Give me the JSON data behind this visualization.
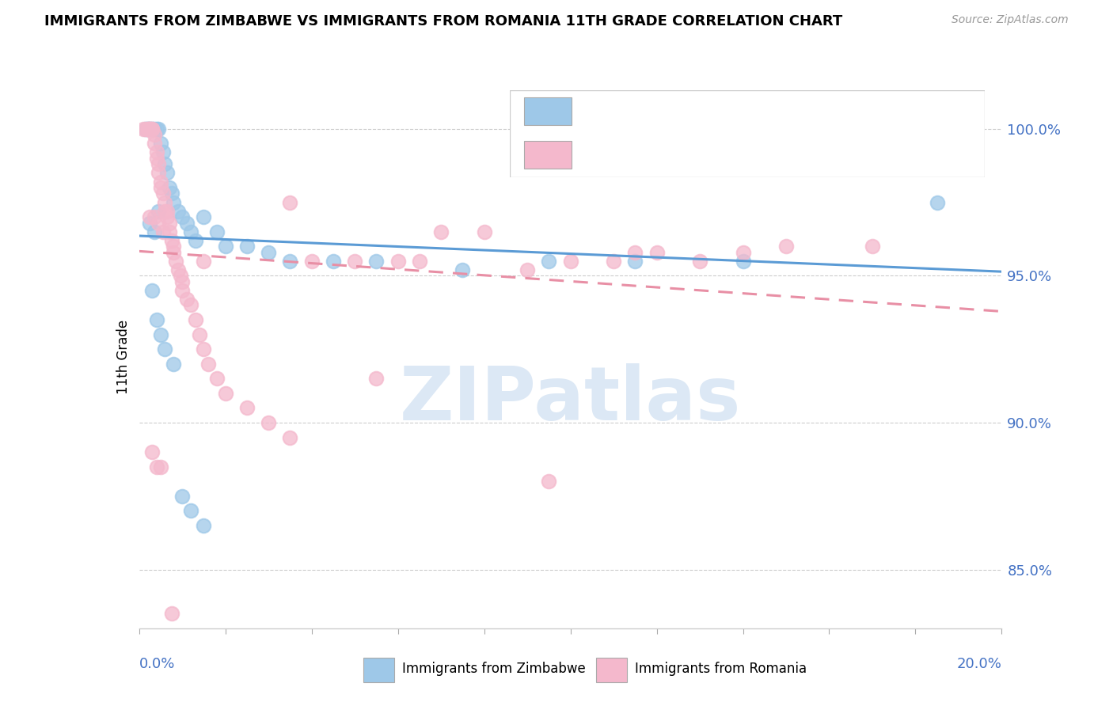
{
  "title": "IMMIGRANTS FROM ZIMBABWE VS IMMIGRANTS FROM ROMANIA 11TH GRADE CORRELATION CHART",
  "source": "Source: ZipAtlas.com",
  "ylabel": "11th Grade",
  "xlim": [
    0.0,
    20.0
  ],
  "ylim": [
    83.0,
    101.5
  ],
  "yticks": [
    85.0,
    90.0,
    95.0,
    100.0
  ],
  "ytick_labels": [
    "85.0%",
    "90.0%",
    "95.0%",
    "100.0%"
  ],
  "color_zimbabwe": "#9ec8e8",
  "color_romania": "#f4b8cc",
  "color_blue_text": "#4472c4",
  "watermark": "ZIPatlas",
  "watermark_color": "#dce8f5",
  "zimbabwe_x": [
    0.15,
    0.2,
    0.25,
    0.3,
    0.35,
    0.4,
    0.45,
    0.5,
    0.55,
    0.6,
    0.65,
    0.7,
    0.75,
    0.8,
    0.9,
    1.0,
    1.1,
    1.2,
    1.3,
    1.5,
    1.8,
    2.0,
    2.5,
    3.0,
    3.5,
    4.5,
    5.5,
    7.5,
    9.5,
    11.5,
    14.0,
    0.3,
    0.4,
    0.5,
    0.6,
    0.8,
    1.0,
    1.2,
    1.5,
    0.35,
    0.45,
    18.5,
    0.25
  ],
  "zimbabwe_y": [
    100.0,
    100.0,
    100.0,
    100.0,
    100.0,
    100.0,
    100.0,
    99.5,
    99.2,
    98.8,
    98.5,
    98.0,
    97.8,
    97.5,
    97.2,
    97.0,
    96.8,
    96.5,
    96.2,
    97.0,
    96.5,
    96.0,
    96.0,
    95.8,
    95.5,
    95.5,
    95.5,
    95.2,
    95.5,
    95.5,
    95.5,
    94.5,
    93.5,
    93.0,
    92.5,
    92.0,
    87.5,
    87.0,
    86.5,
    96.5,
    97.2,
    97.5,
    96.8
  ],
  "romania_x": [
    0.1,
    0.15,
    0.2,
    0.2,
    0.25,
    0.25,
    0.3,
    0.3,
    0.35,
    0.35,
    0.4,
    0.4,
    0.45,
    0.45,
    0.5,
    0.5,
    0.55,
    0.6,
    0.6,
    0.65,
    0.7,
    0.7,
    0.75,
    0.8,
    0.8,
    0.85,
    0.9,
    0.95,
    1.0,
    1.0,
    1.1,
    1.2,
    1.3,
    1.4,
    1.5,
    1.5,
    1.6,
    1.8,
    2.0,
    2.5,
    3.0,
    3.5,
    4.0,
    5.0,
    5.5,
    6.0,
    7.0,
    8.0,
    9.0,
    10.0,
    11.0,
    12.0,
    13.0,
    14.0,
    15.0,
    17.0,
    0.3,
    0.4,
    0.5,
    3.5,
    6.5,
    9.5,
    11.5,
    0.25,
    0.35,
    0.45,
    0.55,
    0.65,
    0.75
  ],
  "romania_y": [
    100.0,
    100.0,
    100.0,
    100.0,
    100.0,
    100.0,
    100.0,
    100.0,
    99.8,
    99.5,
    99.2,
    99.0,
    98.8,
    98.5,
    98.2,
    98.0,
    97.8,
    97.5,
    97.2,
    97.0,
    96.8,
    96.5,
    96.2,
    96.0,
    95.8,
    95.5,
    95.2,
    95.0,
    94.8,
    94.5,
    94.2,
    94.0,
    93.5,
    93.0,
    92.5,
    95.5,
    92.0,
    91.5,
    91.0,
    90.5,
    90.0,
    89.5,
    95.5,
    95.5,
    91.5,
    95.5,
    96.5,
    96.5,
    95.2,
    95.5,
    95.5,
    95.8,
    95.5,
    95.8,
    96.0,
    96.0,
    89.0,
    88.5,
    88.5,
    97.5,
    95.5,
    88.0,
    95.8,
    97.0,
    97.0,
    96.8,
    96.5,
    97.2,
    83.5
  ]
}
